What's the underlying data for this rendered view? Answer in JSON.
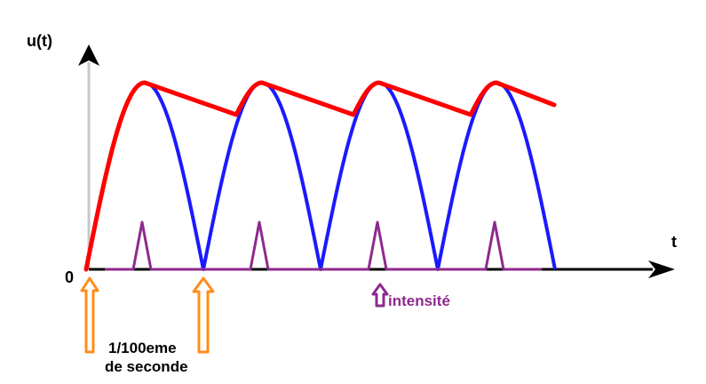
{
  "labels": {
    "y_axis": "u(t)",
    "x_axis": "t",
    "origin": "0",
    "intensity": "intensité",
    "period_line1": "1/100eme",
    "period_line2": "de seconde"
  },
  "colors": {
    "axis": "#000000",
    "rectified_voltage": "#1a1aff",
    "filtered_voltage": "#ff0000",
    "current_pulses": "#8e2a8e",
    "period_arrows": "#ff8c1a",
    "intensity_text": "#8e2a8e"
  },
  "icons": {
    "y_axis_arrowhead": "up-arrowhead",
    "x_axis_arrowhead": "right-arrowhead",
    "period_marker": "hollow-up-arrow",
    "intensity_marker": "hollow-up-arrow"
  },
  "curves": {
    "rectified_voltage": "full-wave rectified sine (|sin|), 4 half-waves",
    "filtered_voltage": "capacitor-smoothed sawtooth following peaks",
    "current_pulses": "narrow charging-current spikes near each peak"
  }
}
